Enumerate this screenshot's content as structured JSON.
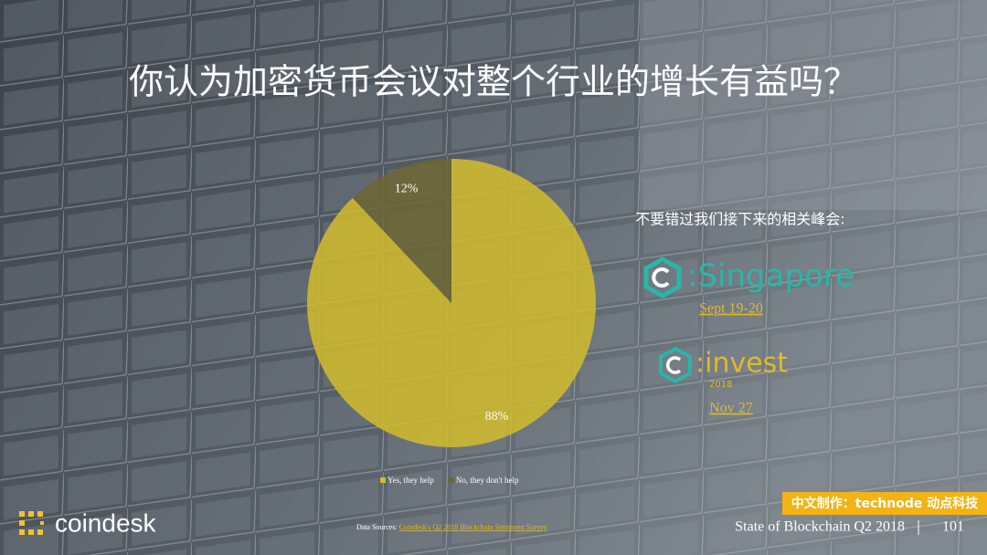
{
  "chart_data": {
    "type": "pie",
    "title": "你认为加密货币会议对整个行业的增长有益吗？",
    "categories": [
      "Yes, they help",
      "No, they don't help"
    ],
    "values": [
      88,
      12
    ],
    "value_labels": [
      "88%",
      "12%"
    ],
    "colors": [
      "#d4bc2c",
      "#6e6634"
    ],
    "legend": "bottom"
  },
  "slide": {
    "promo": "不要错过我们接下来的相关峰会:",
    "events": [
      {
        "name": ":Singapore",
        "date": "Sept 19-20"
      },
      {
        "name": ":invest",
        "year": "2018",
        "date": "Nov 27"
      }
    ],
    "brand": "coindesk",
    "source_label": "Data Sources: ",
    "source": "Coindesk's Q2 2018 Blockchain Sentiment Survey",
    "footer": "State of Blockchain Q2 2018",
    "page": "101",
    "badge": "中文制作：technode 动点科技"
  }
}
